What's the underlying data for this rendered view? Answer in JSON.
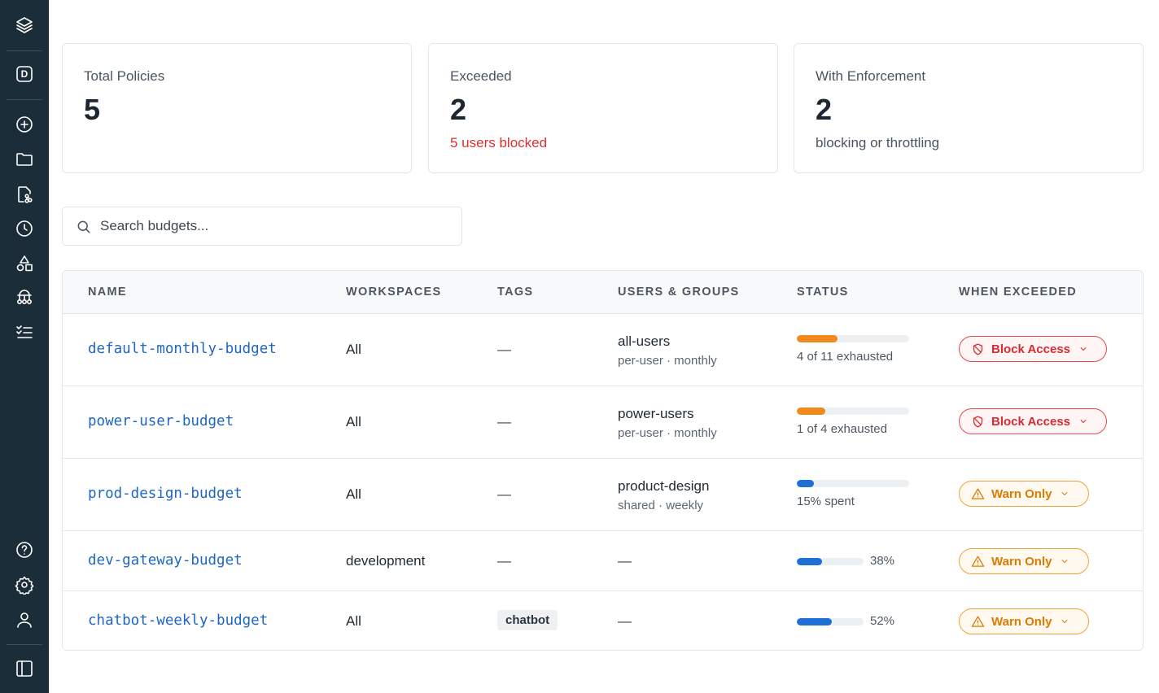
{
  "sidebar": {
    "workspace_badge": "D",
    "icons": [
      "layers-icon",
      "workspace-badge-icon",
      "plus-circle-icon",
      "folder-icon",
      "file-branch-icon",
      "clock-icon",
      "shapes-icon",
      "hierarchy-icon",
      "checklist-icon",
      "help-icon",
      "settings-icon",
      "user-icon",
      "panel-toggle-icon"
    ]
  },
  "cards": [
    {
      "label": "Total Policies",
      "value": "5",
      "sub": ""
    },
    {
      "label": "Exceeded",
      "value": "2",
      "sub": "5 users blocked"
    },
    {
      "label": "With Enforcement",
      "value": "2",
      "sub": "blocking or throttling"
    }
  ],
  "search": {
    "placeholder": "Search budgets..."
  },
  "table": {
    "headers": [
      "NAME",
      "WORKSPACES",
      "TAGS",
      "USERS & GROUPS",
      "STATUS",
      "WHEN EXCEEDED"
    ],
    "rows": [
      {
        "name": "default-monthly-budget",
        "workspaces": "All",
        "tags": "—",
        "ug_main": "all-users",
        "ug_sub": "per-user · monthly",
        "status_text": "4 of 11 exhausted",
        "progress": 0.36,
        "action": "Block Access"
      },
      {
        "name": "power-user-budget",
        "workspaces": "All",
        "tags": "—",
        "ug_main": "power-users",
        "ug_sub": "per-user · monthly",
        "status_text": "1 of 4 exhausted",
        "progress": 0.25,
        "action": "Block Access"
      },
      {
        "name": "prod-design-budget",
        "workspaces": "All",
        "tags": "—",
        "ug_main": "product-design",
        "ug_sub": "shared · weekly",
        "status_text": "15% spent",
        "progress": 0.15,
        "action": "Warn Only"
      },
      {
        "name": "dev-gateway-budget",
        "workspaces": "development",
        "tags": "—",
        "ug_main": "—",
        "ug_sub": "",
        "status_text": "38%",
        "progress": 0.38,
        "action": "Warn Only"
      },
      {
        "name": "chatbot-weekly-budget",
        "workspaces": "All",
        "tags": "chatbot",
        "ug_main": "—",
        "ug_sub": "",
        "status_text": "52%",
        "progress": 0.52,
        "action": "Warn Only"
      }
    ]
  },
  "colors": {
    "block": "#d42d33",
    "warn": "#dd7a00",
    "bar_orange": "#f08a1c",
    "bar_blue": "#1e6fd6",
    "exceeded_text": "#dc2f2f",
    "sidebar_bg": "#1b2d38",
    "link": "#1f66c4"
  }
}
